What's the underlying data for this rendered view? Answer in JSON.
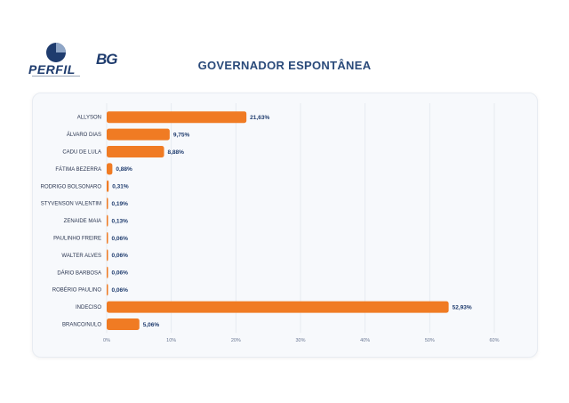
{
  "header": {
    "perfil_logo": "PERFIL",
    "bg_logo": "BG",
    "title": "GOVERNADOR ESPONTÂNEA"
  },
  "colors": {
    "bar": "#f07b23",
    "grid": "#e3e7ee",
    "text": "#1f3c6e"
  },
  "chart_data": {
    "type": "bar",
    "orientation": "horizontal",
    "title": "GOVERNADOR ESPONTÂNEA",
    "categories": [
      "ALLYSON",
      "ÁLVARO DIAS",
      "CADU DE LULA",
      "FÁTIMA BEZERRA",
      "RODRIGO BOLSONARO",
      "STYVENSON VALENTIM",
      "ZENAIDE MAIA",
      "PAULINHO FREIRE",
      "WALTER ALVES",
      "DÁRIO BARBOSA",
      "ROBÉRIO PAULINO",
      "INDECISO",
      "BRANCO/NULO"
    ],
    "values": [
      21.63,
      9.75,
      8.88,
      0.88,
      0.31,
      0.19,
      0.13,
      0.06,
      0.06,
      0.06,
      0.06,
      52.93,
      5.06
    ],
    "value_labels": [
      "21,63%",
      "9,75%",
      "8,88%",
      "0,88%",
      "0,31%",
      "0,19%",
      "0,13%",
      "0,06%",
      "0,06%",
      "0,06%",
      "0,06%",
      "52,93%",
      "5,06%"
    ],
    "xlim": [
      0,
      60
    ],
    "xticks": [
      "0%",
      "10%",
      "20%",
      "30%",
      "40%",
      "50%",
      "60%"
    ],
    "grid": true
  }
}
